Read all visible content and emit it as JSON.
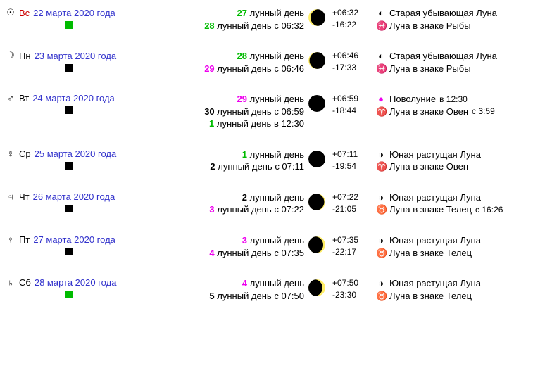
{
  "lunar_label": "лунный день",
  "rows": [
    {
      "planet": "☉",
      "weekday": "Вс",
      "weekday_red": true,
      "date": "22 марта 2020 года",
      "sq": "green",
      "lunar": [
        {
          "num": "27",
          "col": "green",
          "suffix": ""
        },
        {
          "num": "28",
          "col": "green",
          "suffix": "с 06:32"
        }
      ],
      "moon_type": "waning_crescent_thin",
      "rise": "+06:32",
      "set": "-16:22",
      "info": [
        {
          "sym": "◐",
          "sym_col": "black",
          "text": "Старая убывающая Луна"
        },
        {
          "sym": "♓",
          "sym_col": "black",
          "text": "Луна в знаке Рыбы"
        }
      ]
    },
    {
      "planet": "☽",
      "weekday": "Пн",
      "weekday_red": false,
      "date": "23 марта 2020 года",
      "sq": "black",
      "lunar": [
        {
          "num": "28",
          "col": "green",
          "suffix": ""
        },
        {
          "num": "29",
          "col": "magenta",
          "suffix": "с 06:46"
        }
      ],
      "moon_type": "waning_crescent_thinner",
      "rise": "+06:46",
      "set": "-17:33",
      "info": [
        {
          "sym": "◐",
          "sym_col": "black",
          "text": "Старая убывающая Луна"
        },
        {
          "sym": "♓",
          "sym_col": "black",
          "text": "Луна в знаке Рыбы"
        }
      ]
    },
    {
      "planet": "♂",
      "weekday": "Вт",
      "weekday_red": false,
      "date": "24 марта 2020 года",
      "sq": "black",
      "lunar": [
        {
          "num": "29",
          "col": "magenta",
          "suffix": ""
        },
        {
          "num": "30",
          "col": "black",
          "suffix": "с 06:59"
        },
        {
          "num": "1",
          "col": "green",
          "suffix": "в 12:30"
        }
      ],
      "moon_type": "new",
      "rise": "+06:59",
      "set": "-18:44",
      "info": [
        {
          "sym": "●",
          "sym_col": "magenta",
          "text": "Новолуние",
          "extra": "в 12:30"
        },
        {
          "sym": "♈",
          "sym_col": "orange",
          "text": "Луна в знаке Овен",
          "extra": "с 3:59"
        }
      ]
    },
    {
      "planet": "☿",
      "weekday": "Ср",
      "weekday_red": false,
      "date": "25 марта 2020 года",
      "sq": "black",
      "lunar": [
        {
          "num": "1",
          "col": "green",
          "suffix": ""
        },
        {
          "num": "2",
          "col": "black",
          "suffix": "с 07:11"
        }
      ],
      "moon_type": "new",
      "rise": "+07:11",
      "set": "-19:54",
      "info": [
        {
          "sym": "◑",
          "sym_col": "black",
          "text": "Юная растущая Луна"
        },
        {
          "sym": "♈",
          "sym_col": "orange",
          "text": "Луна в знаке Овен"
        }
      ]
    },
    {
      "planet": "♃",
      "weekday": "Чт",
      "weekday_red": false,
      "date": "26 марта 2020 года",
      "sq": "black",
      "lunar": [
        {
          "num": "2",
          "col": "black",
          "suffix": ""
        },
        {
          "num": "3",
          "col": "magenta",
          "suffix": "с 07:22"
        }
      ],
      "moon_type": "waxing_crescent_thin",
      "rise": "+07:22",
      "set": "-21:05",
      "info": [
        {
          "sym": "◑",
          "sym_col": "black",
          "text": "Юная растущая Луна"
        },
        {
          "sym": "♉",
          "sym_col": "black",
          "text": "Луна в знаке Телец",
          "extra": "с 16:26"
        }
      ]
    },
    {
      "planet": "♀",
      "weekday": "Пт",
      "weekday_red": false,
      "date": "27 марта 2020 года",
      "sq": "black",
      "lunar": [
        {
          "num": "3",
          "col": "magenta",
          "suffix": ""
        },
        {
          "num": "4",
          "col": "magenta",
          "suffix": "с 07:35"
        }
      ],
      "moon_type": "waxing_crescent",
      "rise": "+07:35",
      "set": "-22:17",
      "info": [
        {
          "sym": "◑",
          "sym_col": "black",
          "text": "Юная растущая Луна"
        },
        {
          "sym": "♉",
          "sym_col": "black",
          "text": "Луна в знаке Телец"
        }
      ]
    },
    {
      "planet": "♄",
      "weekday": "Сб",
      "weekday_red": false,
      "date": "28 марта 2020 года",
      "sq": "green",
      "lunar": [
        {
          "num": "4",
          "col": "magenta",
          "suffix": ""
        },
        {
          "num": "5",
          "col": "black",
          "suffix": "с 07:50"
        }
      ],
      "moon_type": "waxing_crescent_more",
      "rise": "+07:50",
      "set": "-23:30",
      "info": [
        {
          "sym": "◑",
          "sym_col": "black",
          "text": "Юная растущая Луна"
        },
        {
          "sym": "♉",
          "sym_col": "black",
          "text": "Луна в знаке Телец"
        }
      ]
    }
  ],
  "colors": {
    "link": "#3333cc",
    "green": "#00bb00",
    "magenta": "#ee00ee",
    "orange": "#ff8800",
    "moonlit": "#ffee66",
    "moondark": "#000000"
  }
}
